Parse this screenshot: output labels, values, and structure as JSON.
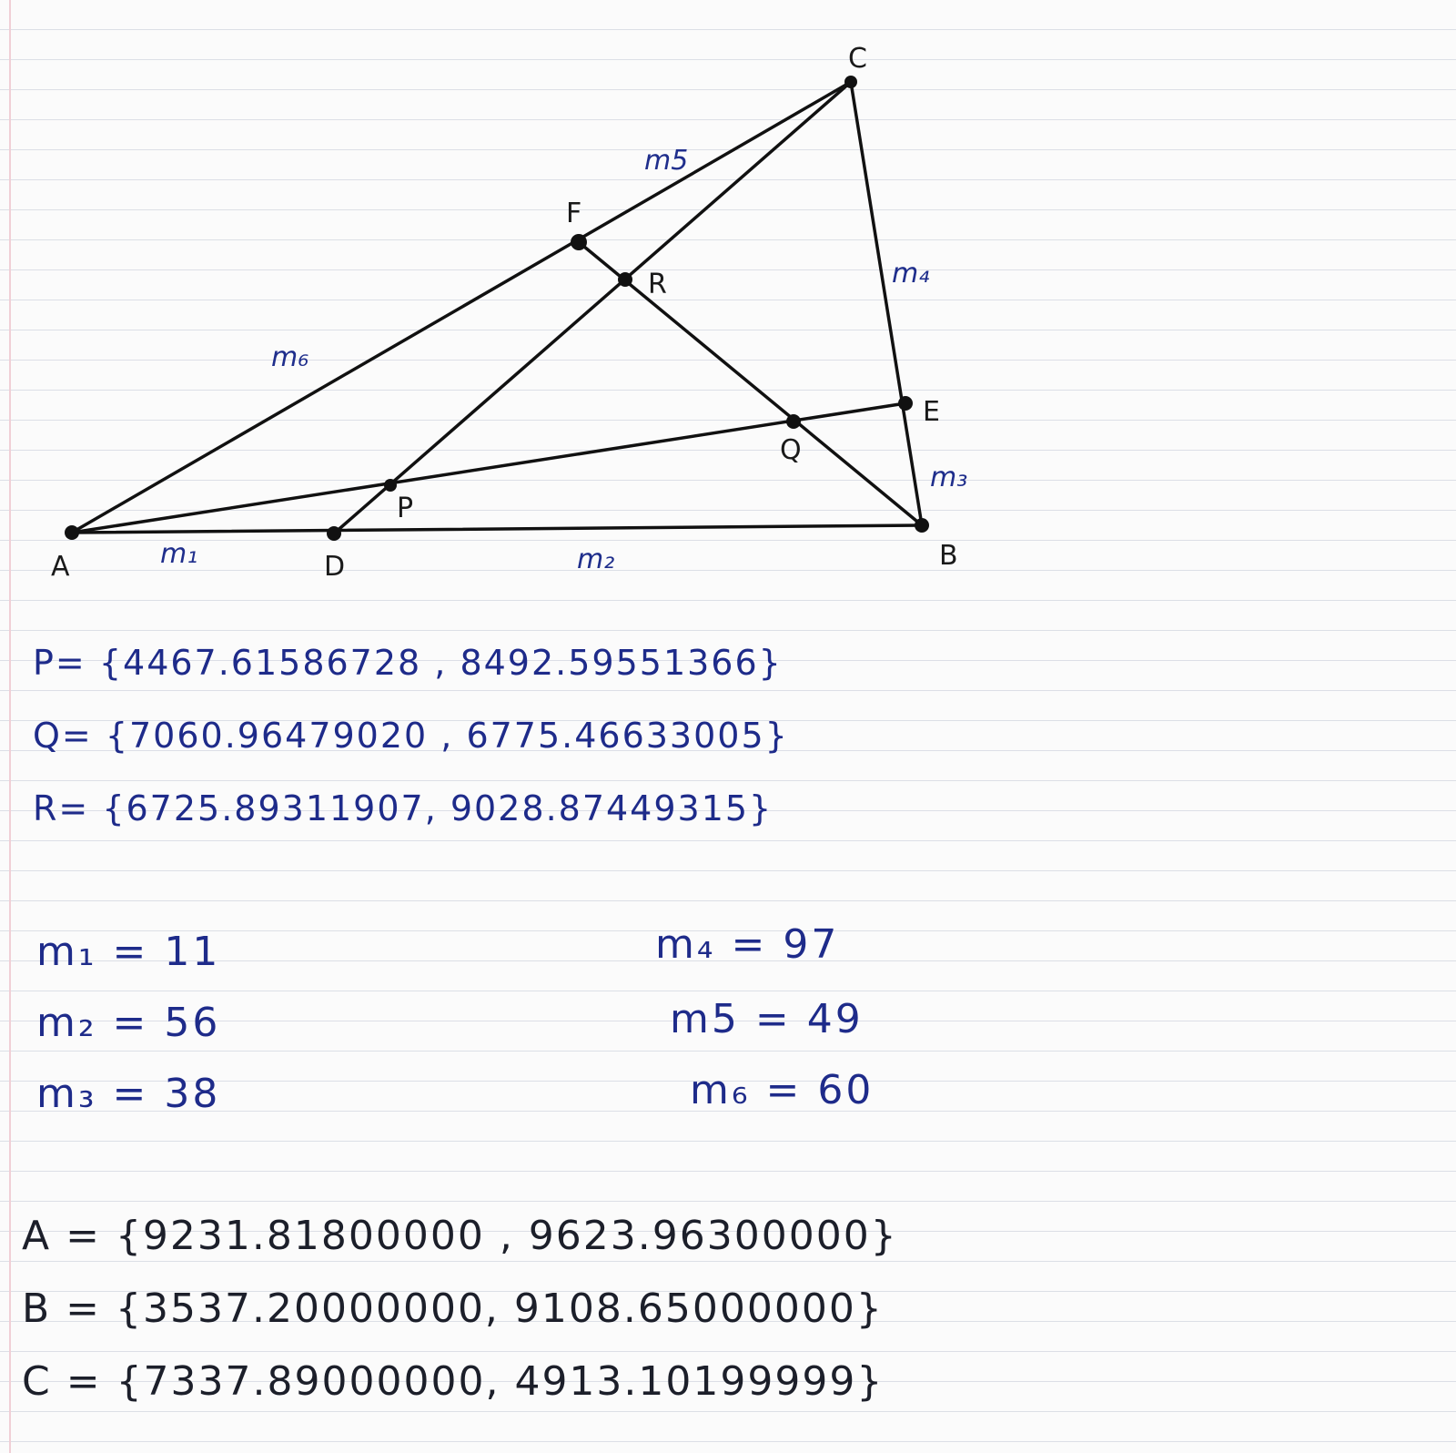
{
  "diagram": {
    "points": {
      "A": "A",
      "B": "B",
      "C": "C",
      "D": "D",
      "E": "E",
      "F": "F",
      "P": "P",
      "Q": "Q",
      "R": "R"
    },
    "segment_labels": {
      "m1": "m₁",
      "m2": "m₂",
      "m3": "m₃",
      "m4": "m₄",
      "m5": "m5",
      "m6": "m₆"
    }
  },
  "intersections": [
    {
      "text": "P= {4467.61586728 , 8492.59551366}"
    },
    {
      "text": "Q= {7060.96479020 , 6775.46633005}"
    },
    {
      "text": "R= {6725.89311907, 9028.87449315}"
    }
  ],
  "measures": {
    "m1": "m₁ = 11",
    "m2": "m₂ = 56",
    "m3": "m₃ = 38",
    "m4": "m₄ = 97",
    "m5": "m5 = 49",
    "m6": "m₆ = 60"
  },
  "vertices": [
    {
      "text": "A = {9231.81800000 , 9623.96300000}"
    },
    {
      "text": "B = {3537.20000000, 9108.65000000}"
    },
    {
      "text": "C = {7337.89000000, 4913.10199999}"
    }
  ]
}
